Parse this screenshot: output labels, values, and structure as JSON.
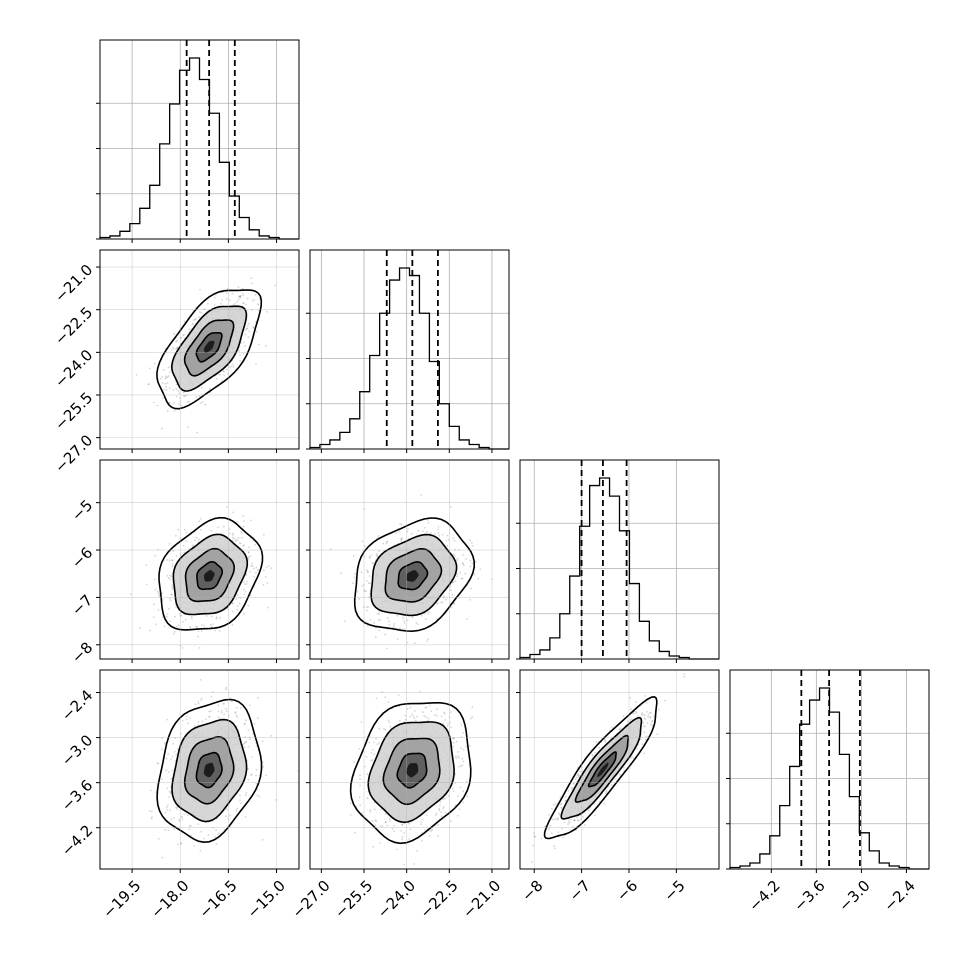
{
  "chart_data": {
    "type": "corner",
    "grid": true,
    "quantile_line_style": "dashed",
    "contour_style": "solid black",
    "colors": {
      "line": "#000000",
      "grid": "#b0b0b0",
      "points": "#8a8a8a",
      "background": "#ffffff"
    },
    "parameters": [
      {
        "index": 0,
        "ticks": [
          "−19.5",
          "−18.0",
          "−16.5",
          "−15.0"
        ],
        "tick_values": [
          -19.5,
          -18.0,
          -16.5,
          -15.0
        ],
        "range": [
          -20.5,
          -14.3
        ],
        "quantiles": [
          -17.8,
          -17.1,
          -16.3
        ],
        "median": -17.1,
        "std": 0.65
      },
      {
        "index": 1,
        "ticks": [
          "−27.0",
          "−25.5",
          "−24.0",
          "−22.5",
          "−21.0"
        ],
        "tick_values": [
          -27.0,
          -25.5,
          -24.0,
          -22.5,
          -21.0
        ],
        "range": [
          -27.4,
          -20.4
        ],
        "quantiles": [
          -24.7,
          -23.8,
          -22.9
        ],
        "median": -23.8,
        "std": 0.85
      },
      {
        "index": 2,
        "ticks": [
          "−8",
          "−7",
          "−6",
          "−5"
        ],
        "tick_values": [
          -8,
          -7,
          -6,
          -5
        ],
        "range": [
          -8.3,
          -4.1
        ],
        "quantiles": [
          -7.0,
          -6.55,
          -6.05
        ],
        "median": -6.55,
        "std": 0.48
      },
      {
        "index": 3,
        "ticks": [
          "−4.2",
          "−3.6",
          "−3.0",
          "−2.4"
        ],
        "tick_values": [
          -4.2,
          -3.6,
          -3.0,
          -2.4
        ],
        "range": [
          -4.75,
          -2.1
        ],
        "quantiles": [
          -3.8,
          -3.43,
          -3.02
        ],
        "median": -3.43,
        "std": 0.38
      }
    ],
    "correlations": [
      {
        "pair": [
          0,
          1
        ],
        "r": 0.6
      },
      {
        "pair": [
          0,
          2
        ],
        "r": 0.25
      },
      {
        "pair": [
          1,
          2
        ],
        "r": 0.25
      },
      {
        "pair": [
          0,
          3
        ],
        "r": 0.2
      },
      {
        "pair": [
          1,
          3
        ],
        "r": 0.2
      },
      {
        "pair": [
          2,
          3
        ],
        "r": 0.9
      }
    ],
    "histograms": [
      {
        "param": 0,
        "bin_edges_range": [
          -20.5,
          -14.3
        ],
        "bins": 20,
        "counts": [
          1,
          2,
          5,
          10,
          20,
          35,
          62,
          88,
          110,
          118,
          104,
          82,
          50,
          28,
          14,
          6,
          2,
          1,
          0,
          0
        ]
      },
      {
        "param": 1,
        "bin_edges_range": [
          -27.4,
          -20.4
        ],
        "bins": 20,
        "counts": [
          1,
          3,
          6,
          11,
          20,
          38,
          62,
          90,
          112,
          120,
          115,
          90,
          58,
          30,
          15,
          6,
          3,
          1,
          0,
          0
        ]
      },
      {
        "param": 2,
        "bin_edges_range": [
          -8.3,
          -4.1
        ],
        "bins": 20,
        "counts": [
          1,
          3,
          6,
          14,
          30,
          55,
          88,
          115,
          120,
          108,
          85,
          50,
          25,
          12,
          5,
          2,
          1,
          0,
          0,
          0
        ]
      },
      {
        "param": 3,
        "bin_edges_range": [
          -4.75,
          -2.1
        ],
        "bins": 20,
        "counts": [
          1,
          2,
          4,
          10,
          22,
          42,
          68,
          96,
          112,
          120,
          104,
          76,
          48,
          24,
          12,
          4,
          2,
          1,
          0,
          0
        ]
      }
    ]
  }
}
